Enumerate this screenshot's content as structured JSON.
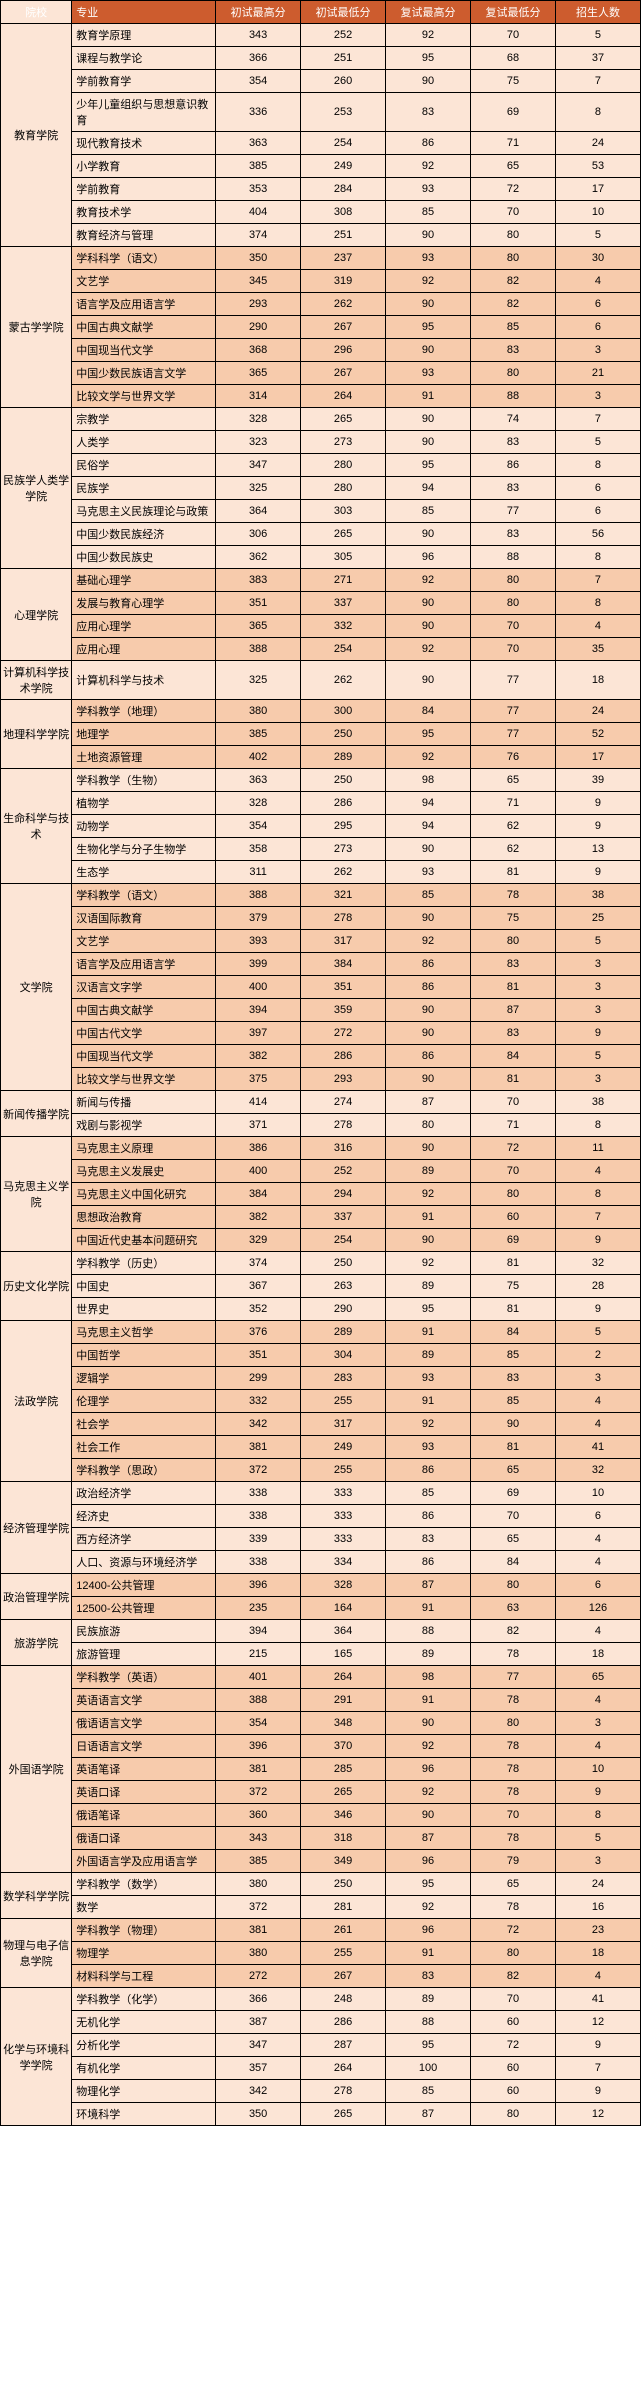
{
  "headers": [
    "院校",
    "专业",
    "初试最高分",
    "初试最低分",
    "复试最高分",
    "复试最低分",
    "招生人数"
  ],
  "alt_colors": [
    "#fce5d6",
    "#f7cbac"
  ],
  "groups": [
    {
      "name": "教育学院",
      "rows": [
        [
          "教育学原理",
          343,
          252,
          92,
          70,
          5
        ],
        [
          "课程与教学论",
          366,
          251,
          95,
          68,
          37
        ],
        [
          "学前教育学",
          354,
          260,
          90,
          75,
          7
        ],
        [
          "少年儿童组织与思想意识教育",
          336,
          253,
          83,
          69,
          8
        ],
        [
          "现代教育技术",
          363,
          254,
          86,
          71,
          24
        ],
        [
          "小学教育",
          385,
          249,
          92,
          65,
          53
        ],
        [
          "学前教育",
          353,
          284,
          93,
          72,
          17
        ],
        [
          "教育技术学",
          404,
          308,
          85,
          70,
          10
        ],
        [
          "教育经济与管理",
          374,
          251,
          90,
          80,
          5
        ]
      ]
    },
    {
      "name": "蒙古学学院",
      "rows": [
        [
          "学科科学（语文）",
          350,
          237,
          93,
          80,
          30
        ],
        [
          "文艺学",
          345,
          319,
          92,
          82,
          4
        ],
        [
          "语言学及应用语言学",
          293,
          262,
          90,
          82,
          6
        ],
        [
          "中国古典文献学",
          290,
          267,
          95,
          85,
          6
        ],
        [
          "中国现当代文学",
          368,
          296,
          90,
          83,
          3
        ],
        [
          "中国少数民族语言文学",
          365,
          267,
          93,
          80,
          21
        ],
        [
          "比较文学与世界文学",
          314,
          264,
          91,
          88,
          3
        ]
      ]
    },
    {
      "name": "民族学人类学学院",
      "rows": [
        [
          "宗教学",
          328,
          265,
          90,
          74,
          7
        ],
        [
          "人类学",
          323,
          273,
          90,
          83,
          5
        ],
        [
          "民俗学",
          347,
          280,
          95,
          86,
          8
        ],
        [
          "民族学",
          325,
          280,
          94,
          83,
          6
        ],
        [
          "马克思主义民族理论与政策",
          364,
          303,
          85,
          77,
          6
        ],
        [
          "中国少数民族经济",
          306,
          265,
          90,
          83,
          56
        ],
        [
          "中国少数民族史",
          362,
          305,
          96,
          88,
          8
        ]
      ]
    },
    {
      "name": "心理学院",
      "rows": [
        [
          "基础心理学",
          383,
          271,
          92,
          80,
          7
        ],
        [
          "发展与教育心理学",
          351,
          337,
          90,
          80,
          8
        ],
        [
          "应用心理学",
          365,
          332,
          90,
          70,
          4
        ],
        [
          "应用心理",
          388,
          254,
          92,
          70,
          35
        ]
      ]
    },
    {
      "name": "计算机科学技术学院",
      "rows": [
        [
          "计算机科学与技术",
          325,
          262,
          90,
          77,
          18
        ]
      ]
    },
    {
      "name": "地理科学学院",
      "rows": [
        [
          "学科教学（地理）",
          380,
          300,
          84,
          77,
          24
        ],
        [
          "地理学",
          385,
          250,
          95,
          77,
          52
        ],
        [
          "土地资源管理",
          402,
          289,
          92,
          76,
          17
        ]
      ]
    },
    {
      "name": "生命科学与技术",
      "rows": [
        [
          "学科教学（生物）",
          363,
          250,
          98,
          65,
          39
        ],
        [
          "植物学",
          328,
          286,
          94,
          71,
          9
        ],
        [
          "动物学",
          354,
          295,
          94,
          62,
          9
        ],
        [
          "生物化学与分子生物学",
          358,
          273,
          90,
          62,
          13
        ],
        [
          "生态学",
          311,
          262,
          93,
          81,
          9
        ]
      ]
    },
    {
      "name": "文学院",
      "rows": [
        [
          "学科教学（语文）",
          388,
          321,
          85,
          78,
          38
        ],
        [
          "汉语国际教育",
          379,
          278,
          90,
          75,
          25
        ],
        [
          "文艺学",
          393,
          317,
          92,
          80,
          5
        ],
        [
          "语言学及应用语言学",
          399,
          384,
          86,
          83,
          3
        ],
        [
          "汉语言文字学",
          400,
          351,
          86,
          81,
          3
        ],
        [
          "中国古典文献学",
          394,
          359,
          90,
          87,
          3
        ],
        [
          "中国古代文学",
          397,
          272,
          90,
          83,
          9
        ],
        [
          "中国现当代文学",
          382,
          286,
          86,
          84,
          5
        ],
        [
          "比较文学与世界文学",
          375,
          293,
          90,
          81,
          3
        ]
      ]
    },
    {
      "name": "新闻传播学院",
      "rows": [
        [
          "新闻与传播",
          414,
          274,
          87,
          70,
          38
        ],
        [
          "戏剧与影视学",
          371,
          278,
          80,
          71,
          8
        ]
      ]
    },
    {
      "name": "马克思主义学院",
      "rows": [
        [
          "马克思主义原理",
          386,
          316,
          90,
          72,
          11
        ],
        [
          "马克思主义发展史",
          400,
          252,
          89,
          70,
          4
        ],
        [
          "马克思主义中国化研究",
          384,
          294,
          92,
          80,
          8
        ],
        [
          "思想政治教育",
          382,
          337,
          91,
          60,
          7
        ],
        [
          "中国近代史基本问题研究",
          329,
          254,
          90,
          69,
          9
        ]
      ]
    },
    {
      "name": "历史文化学院",
      "rows": [
        [
          "学科教学（历史）",
          374,
          250,
          92,
          81,
          32
        ],
        [
          "中国史",
          367,
          263,
          89,
          75,
          28
        ],
        [
          "世界史",
          352,
          290,
          95,
          81,
          9
        ]
      ]
    },
    {
      "name": "法政学院",
      "rows": [
        [
          "马克思主义哲学",
          376,
          289,
          91,
          84,
          5
        ],
        [
          "中国哲学",
          351,
          304,
          89,
          85,
          2
        ],
        [
          "逻辑学",
          299,
          283,
          93,
          83,
          3
        ],
        [
          "伦理学",
          332,
          255,
          91,
          85,
          4
        ],
        [
          "社会学",
          342,
          317,
          92,
          90,
          4
        ],
        [
          "社会工作",
          381,
          249,
          93,
          81,
          41
        ],
        [
          "学科教学（思政）",
          372,
          255,
          86,
          65,
          32
        ]
      ]
    },
    {
      "name": "经济管理学院",
      "rows": [
        [
          "政治经济学",
          338,
          333,
          85,
          69,
          10
        ],
        [
          "经济史",
          338,
          333,
          86,
          70,
          6
        ],
        [
          "西方经济学",
          339,
          333,
          83,
          65,
          4
        ],
        [
          "人口、资源与环境经济学",
          338,
          334,
          86,
          84,
          4
        ]
      ]
    },
    {
      "name": "政治管理学院",
      "rows": [
        [
          "12400-公共管理",
          396,
          328,
          87,
          80,
          6
        ],
        [
          "12500-公共管理",
          235,
          164,
          91,
          63,
          126
        ]
      ]
    },
    {
      "name": "旅游学院",
      "rows": [
        [
          "民族旅游",
          394,
          364,
          88,
          82,
          4
        ],
        [
          "旅游管理",
          215,
          165,
          89,
          78,
          18
        ]
      ]
    },
    {
      "name": "外国语学院",
      "rows": [
        [
          "学科教学（英语）",
          401,
          264,
          98,
          77,
          65
        ],
        [
          "英语语言文学",
          388,
          291,
          91,
          78,
          4
        ],
        [
          "俄语语言文学",
          354,
          348,
          90,
          80,
          3
        ],
        [
          "日语语言文学",
          396,
          370,
          92,
          78,
          4
        ],
        [
          "英语笔译",
          381,
          285,
          96,
          78,
          10
        ],
        [
          "英语口译",
          372,
          265,
          92,
          78,
          9
        ],
        [
          "俄语笔译",
          360,
          346,
          90,
          70,
          8
        ],
        [
          "俄语口译",
          343,
          318,
          87,
          78,
          5
        ],
        [
          "外国语言学及应用语言学",
          385,
          349,
          96,
          79,
          3
        ]
      ]
    },
    {
      "name": "数学科学学院",
      "rows": [
        [
          "学科教学（数学）",
          380,
          250,
          95,
          65,
          24
        ],
        [
          "数学",
          372,
          281,
          92,
          78,
          16
        ]
      ]
    },
    {
      "name": "物理与电子信息学院",
      "rows": [
        [
          "学科教学（物理）",
          381,
          261,
          96,
          72,
          23
        ],
        [
          "物理学",
          380,
          255,
          91,
          80,
          18
        ],
        [
          "材料科学与工程",
          272,
          267,
          83,
          82,
          4
        ]
      ]
    },
    {
      "name": "化学与环境科学学院",
      "rows": [
        [
          "学科教学（化学）",
          366,
          248,
          89,
          70,
          41
        ],
        [
          "无机化学",
          387,
          286,
          88,
          60,
          12
        ],
        [
          "分析化学",
          347,
          287,
          95,
          72,
          9
        ],
        [
          "有机化学",
          357,
          264,
          100,
          60,
          7
        ],
        [
          "物理化学",
          342,
          278,
          85,
          60,
          9
        ],
        [
          "环境科学",
          350,
          265,
          87,
          80,
          12
        ]
      ]
    }
  ]
}
